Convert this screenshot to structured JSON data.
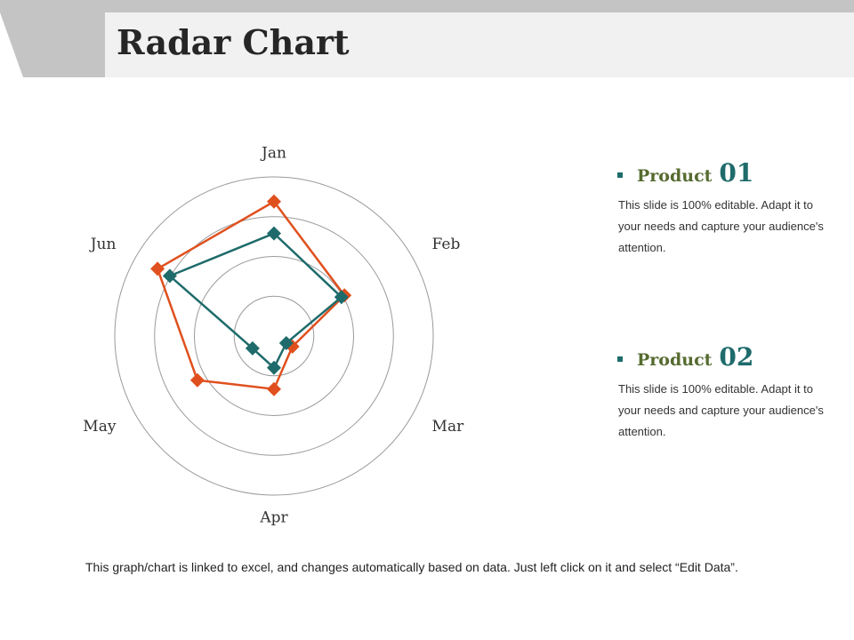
{
  "slide": {
    "title": "Radar Chart",
    "footer": "This graph/chart is linked to excel, and changes automatically based on data. Just left click on it and select “Edit Data”."
  },
  "legend": [
    {
      "label": "Product",
      "number": "01",
      "description": "This slide is 100% editable. Adapt it to your needs and capture your audience's attention."
    },
    {
      "label": "Product",
      "number": "02",
      "description": "This slide is 100% editable. Adapt it to your needs and capture your audience's attention."
    }
  ],
  "colors": {
    "series_orange": "#e0501e",
    "series_teal": "#1f6b6b",
    "legend_green": "#556b2f",
    "grid": "#9a9a9a"
  },
  "chart_data": {
    "type": "radar",
    "title": "",
    "categories": [
      "Jan",
      "Feb",
      "Mar",
      "Apr",
      "May",
      "Jun"
    ],
    "rlim": [
      0,
      45
    ],
    "grid_rings": 4,
    "gridlines": true,
    "series": [
      {
        "color": "#e0501e",
        "values": [
          38,
          23,
          6,
          15,
          25,
          38
        ]
      },
      {
        "color": "#1f6b6b",
        "values": [
          29,
          22,
          4,
          9,
          7,
          34
        ]
      }
    ]
  }
}
